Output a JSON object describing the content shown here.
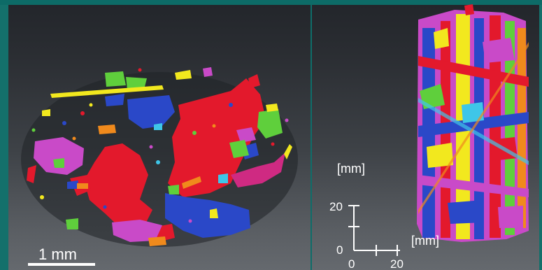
{
  "figure": {
    "left_panel": {
      "scale_bar_label": "1 mm"
    },
    "right_panel": {
      "axis_unit_vertical": "[mm]",
      "axis_unit_horizontal": "[mm]",
      "y_ticks": [
        "20",
        "0"
      ],
      "x_ticks": [
        "0",
        "20"
      ]
    },
    "colors": {
      "frame": "#0e6e6a",
      "red": "#e3192c",
      "blue": "#2a48c8",
      "magenta": "#c94ac8",
      "green": "#5fcf3c",
      "yellow": "#f2e81e",
      "orange": "#f08a1c",
      "cyan": "#3ec6e8"
    }
  }
}
